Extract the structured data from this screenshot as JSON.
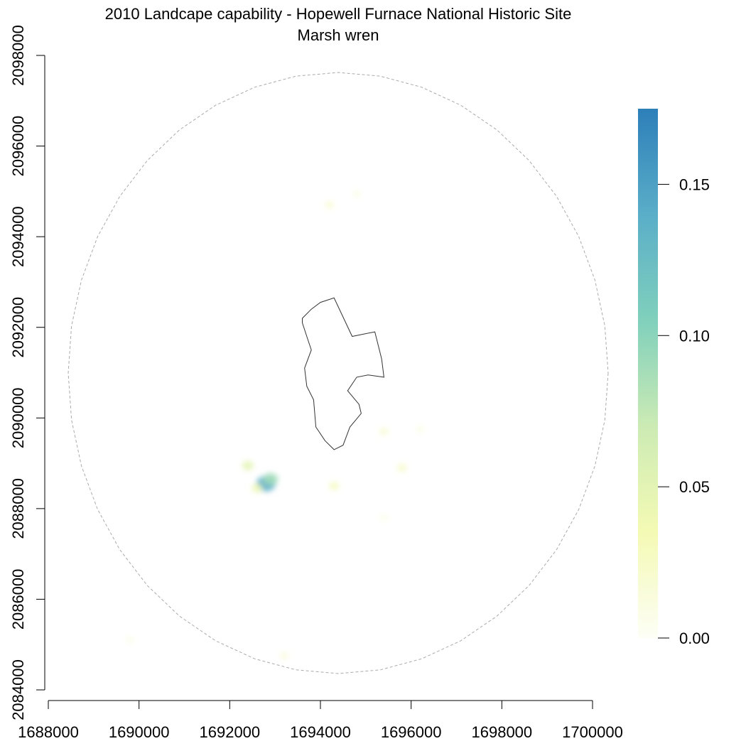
{
  "title": "2010 Landcape capability - Hopewell Furnace National Historic Site",
  "subtitle": "Marsh wren",
  "colors": {
    "boundary": "#333333",
    "buffer": "#aaaaaa",
    "axis": "#000000",
    "ramp": [
      "#fdfef6",
      "#f4fab4",
      "#ccebb4",
      "#80d0bc",
      "#5aaec8",
      "#2d7fb9"
    ]
  },
  "x_axis": {
    "ticks": [
      "1688000",
      "1690000",
      "1692000",
      "1694000",
      "1696000",
      "1698000",
      "1700000"
    ],
    "values": [
      1688000,
      1690000,
      1692000,
      1694000,
      1696000,
      1698000,
      1700000
    ]
  },
  "y_axis": {
    "ticks": [
      "2084000",
      "2086000",
      "2088000",
      "2090000",
      "2092000",
      "2094000",
      "2096000",
      "2098000"
    ],
    "values": [
      2084000,
      2086000,
      2088000,
      2090000,
      2092000,
      2094000,
      2096000,
      2098000
    ]
  },
  "legend": {
    "ticks": [
      "0.00",
      "0.05",
      "0.10",
      "0.15"
    ],
    "values": [
      0.0,
      0.05,
      0.1,
      0.15
    ],
    "max": 0.175
  },
  "chart_data": {
    "type": "heatmap",
    "title": "2010 Landcape capability - Hopewell Furnace National Historic Site",
    "subtitle": "Marsh wren",
    "xlim": [
      1688000,
      1700000
    ],
    "ylim": [
      2084000,
      2098000
    ],
    "value_range": [
      0,
      0.175
    ],
    "legend_placement": "right",
    "grid": false,
    "boundary_polygon": [
      [
        1693600,
        2092200
      ],
      [
        1693800,
        2092400
      ],
      [
        1694000,
        2092550
      ],
      [
        1694300,
        2092650
      ],
      [
        1694700,
        2091800
      ],
      [
        1695200,
        2091900
      ],
      [
        1695350,
        2091300
      ],
      [
        1695400,
        2090900
      ],
      [
        1695050,
        2090950
      ],
      [
        1694800,
        2090900
      ],
      [
        1694600,
        2090600
      ],
      [
        1694850,
        2090300
      ],
      [
        1694900,
        2090100
      ],
      [
        1694650,
        2089800
      ],
      [
        1694500,
        2089400
      ],
      [
        1694300,
        2089300
      ],
      [
        1694100,
        2089500
      ],
      [
        1693900,
        2089800
      ],
      [
        1693850,
        2090400
      ],
      [
        1693700,
        2090700
      ],
      [
        1693650,
        2091100
      ],
      [
        1693800,
        2091500
      ],
      [
        1693700,
        2091800
      ],
      [
        1693600,
        2092100
      ]
    ],
    "hotspots": [
      {
        "x": 1692800,
        "y": 2088550,
        "value": 0.14
      },
      {
        "x": 1692900,
        "y": 2088650,
        "value": 0.09
      },
      {
        "x": 1692400,
        "y": 2088950,
        "value": 0.05
      },
      {
        "x": 1692600,
        "y": 2088450,
        "value": 0.04
      },
      {
        "x": 1694300,
        "y": 2088500,
        "value": 0.03
      },
      {
        "x": 1695800,
        "y": 2088900,
        "value": 0.025
      },
      {
        "x": 1695400,
        "y": 2089700,
        "value": 0.02
      },
      {
        "x": 1694200,
        "y": 2094700,
        "value": 0.02
      },
      {
        "x": 1694800,
        "y": 2094950,
        "value": 0.01
      },
      {
        "x": 1696200,
        "y": 2089750,
        "value": 0.01
      },
      {
        "x": 1693200,
        "y": 2084750,
        "value": 0.015
      },
      {
        "x": 1689800,
        "y": 2085100,
        "value": 0.008
      },
      {
        "x": 1695400,
        "y": 2087800,
        "value": 0.008
      }
    ]
  }
}
